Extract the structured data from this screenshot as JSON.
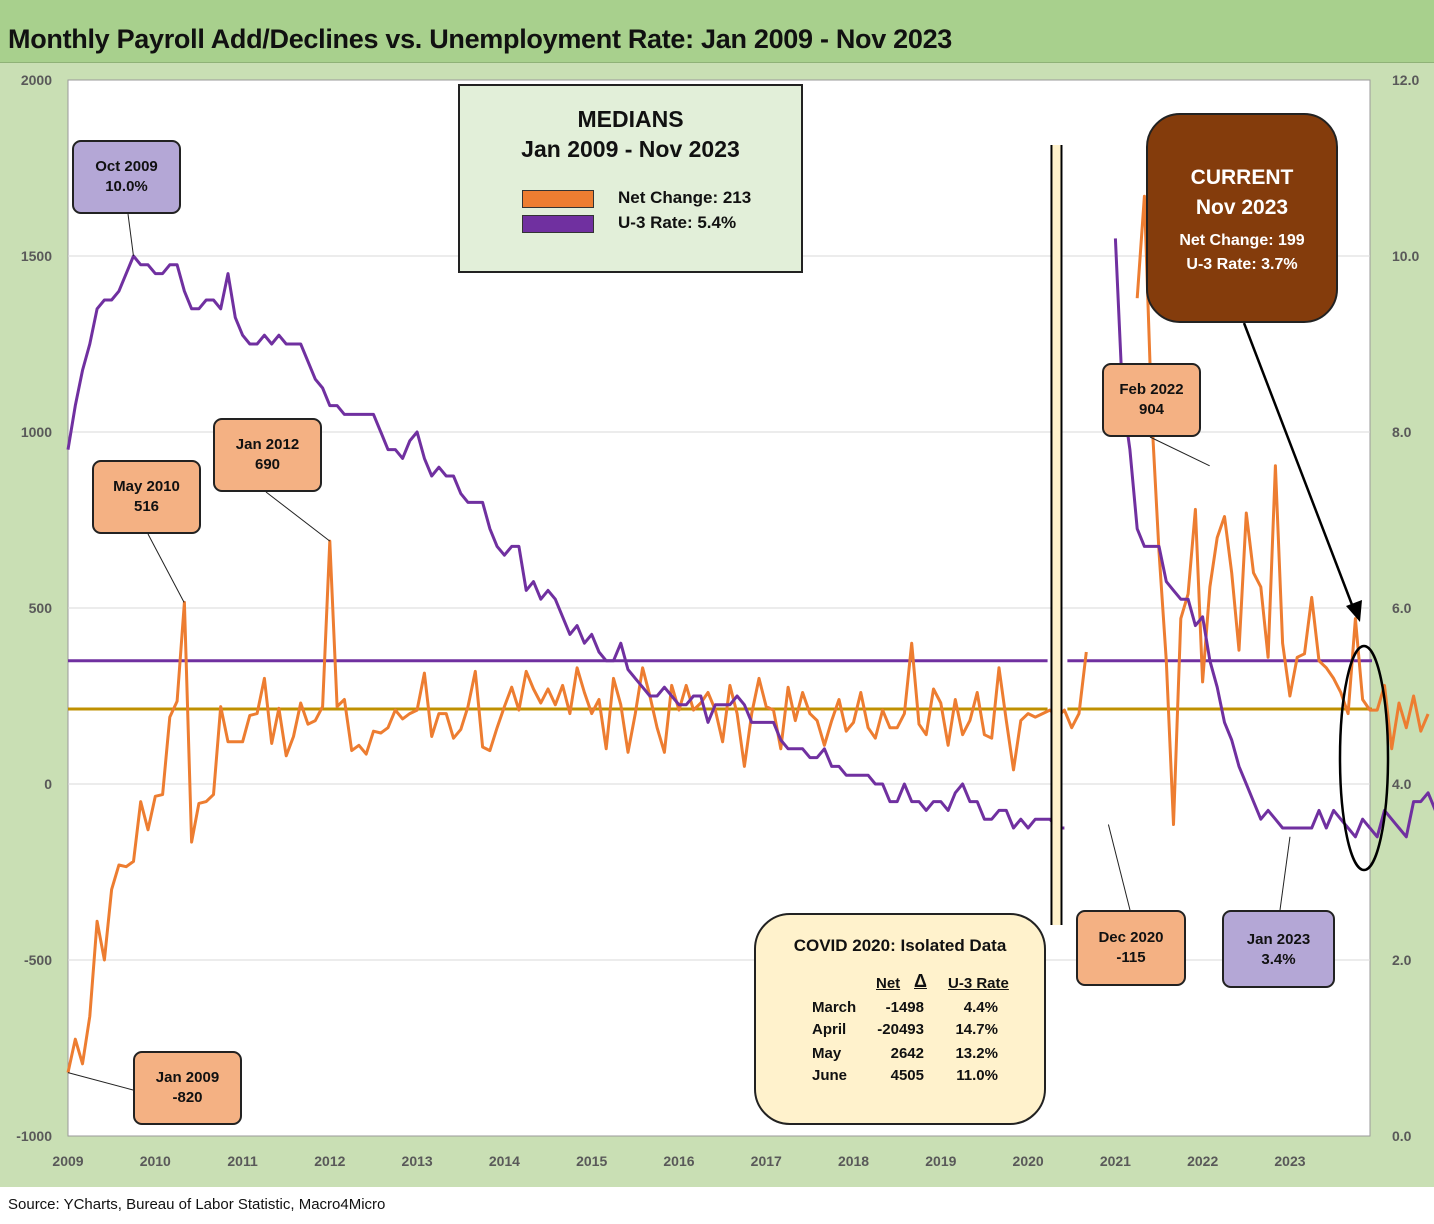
{
  "title": "Monthly Payroll Add/Declines vs. Unemployment Rate: Jan 2009 - Nov 2023",
  "source": "Source: YCharts, Bureau of Labor Statistic, Macro4Micro",
  "colors": {
    "payroll": "#ed7d31",
    "u3": "#7030a0",
    "median_payroll": "#bf9000",
    "median_u3": "#7030a0",
    "frame": "#c9dfb4",
    "title_bar": "#a8d08d"
  },
  "medians_box": {
    "heading1": "MEDIANS",
    "heading2": "Jan 2009 - Nov 2023",
    "net_change": "Net Change: 213",
    "u3_rate": "U-3 Rate: 5.4%"
  },
  "current_box": {
    "heading1": "CURRENT",
    "heading2": "Nov 2023",
    "net_change": "Net Change: 199",
    "u3_rate": "U-3 Rate: 3.7%"
  },
  "covid_box": {
    "title": "COVID 2020: Isolated Data",
    "col_net": "Net",
    "col_delta": "Δ",
    "col_rate": "U-3 Rate",
    "rows": [
      {
        "month": "March",
        "net": "-1498",
        "rate": "4.4%"
      },
      {
        "month": "April",
        "net": "-20493",
        "rate": "14.7%"
      },
      {
        "month": "May",
        "net": "2642",
        "rate": "13.2%"
      },
      {
        "month": "June",
        "net": "4505",
        "rate": "11.0%"
      }
    ]
  },
  "callouts": {
    "oct2009": {
      "label": "Oct 2009",
      "value": "10.0%"
    },
    "may2010": {
      "label": "May 2010",
      "value": "516"
    },
    "jan2012": {
      "label": "Jan 2012",
      "value": "690"
    },
    "jan2009": {
      "label": "Jan 2009",
      "value": "-820"
    },
    "feb2022": {
      "label": "Feb 2022",
      "value": "904"
    },
    "dec2020": {
      "label": "Dec 2020",
      "value": "-115"
    },
    "jan2023": {
      "label": "Jan 2023",
      "value": "3.4%"
    }
  },
  "chart_data": {
    "type": "line",
    "title": "Monthly Payroll Add/Declines vs. Unemployment Rate: Jan 2009 - Nov 2023",
    "x_range": [
      2009.0,
      2023.917
    ],
    "x_ticks": [
      "2009",
      "2010",
      "2011",
      "2012",
      "2013",
      "2014",
      "2015",
      "2016",
      "2017",
      "2018",
      "2019",
      "2020",
      "2021",
      "2022",
      "2023"
    ],
    "y_left": {
      "range": [
        -1000,
        2000
      ],
      "ticks": [
        "-1000",
        "-500",
        "0",
        "500",
        "1000",
        "1500",
        "2000"
      ]
    },
    "y_right": {
      "range": [
        0.0,
        12.0
      ],
      "ticks": [
        "0.0",
        "2.0",
        "4.0",
        "6.0",
        "8.0",
        "10.0",
        "12.0"
      ]
    },
    "grid": "horizontal",
    "covid_gap": {
      "start": 2020.2,
      "end": 2020.45
    },
    "medians": {
      "payroll": 213,
      "u3": 5.4
    },
    "series": [
      {
        "name": "Net Change",
        "axis": "left",
        "color": "#ed7d31",
        "start": 2009.0,
        "step": 0.08333,
        "values": [
          -820,
          -725,
          -795,
          -660,
          -390,
          -500,
          -300,
          -230,
          -235,
          -220,
          -50,
          -130,
          -35,
          -30,
          190,
          235,
          516,
          -165,
          -55,
          -50,
          -30,
          220,
          120,
          120,
          120,
          195,
          200,
          300,
          115,
          215,
          80,
          135,
          230,
          170,
          180,
          220,
          690,
          220,
          240,
          95,
          110,
          85,
          150,
          145,
          160,
          210,
          185,
          200,
          210,
          315,
          135,
          200,
          200,
          130,
          155,
          220,
          320,
          105,
          95,
          160,
          220,
          275,
          210,
          320,
          270,
          230,
          270,
          225,
          280,
          200,
          330,
          260,
          200,
          240,
          100,
          300,
          225,
          90,
          200,
          330,
          250,
          160,
          90,
          280,
          210,
          280,
          210,
          230,
          260,
          210,
          120,
          280,
          200,
          50,
          200,
          300,
          220,
          210,
          100,
          275,
          180,
          260,
          200,
          180,
          110,
          180,
          240,
          150,
          175,
          260,
          160,
          130,
          210,
          160,
          160,
          200,
          400,
          170,
          140,
          270,
          230,
          110,
          240,
          140,
          180,
          260,
          140,
          130,
          330,
          180,
          40,
          180,
          200,
          190,
          200,
          210,
          190,
          210,
          160,
          200,
          375,
          null,
          null,
          null,
          null,
          null,
          null,
          1380,
          1670,
          1050,
          660,
          350,
          -115,
          470,
          540,
          780,
          290,
          560,
          700,
          760,
          600,
          380,
          770,
          600,
          560,
          360,
          904,
          400,
          250,
          360,
          370,
          530,
          350,
          330,
          300,
          260,
          200,
          470,
          240,
          210,
          210,
          280,
          100,
          230,
          160,
          250,
          150,
          199
        ],
        "start_after_gap": 2020.5
      },
      {
        "name": "U-3 Rate",
        "axis": "right",
        "color": "#7030a0",
        "start": 2009.0,
        "step": 0.08333,
        "values": [
          7.8,
          8.3,
          8.7,
          9.0,
          9.4,
          9.5,
          9.5,
          9.6,
          9.8,
          10.0,
          9.9,
          9.9,
          9.8,
          9.8,
          9.9,
          9.9,
          9.6,
          9.4,
          9.4,
          9.5,
          9.5,
          9.4,
          9.8,
          9.3,
          9.1,
          9.0,
          9.0,
          9.1,
          9.0,
          9.1,
          9.0,
          9.0,
          9.0,
          8.8,
          8.6,
          8.5,
          8.3,
          8.3,
          8.2,
          8.2,
          8.2,
          8.2,
          8.2,
          8.0,
          7.8,
          7.8,
          7.7,
          7.9,
          8.0,
          7.7,
          7.5,
          7.6,
          7.5,
          7.5,
          7.3,
          7.2,
          7.2,
          7.2,
          6.9,
          6.7,
          6.6,
          6.7,
          6.7,
          6.2,
          6.3,
          6.1,
          6.2,
          6.1,
          5.9,
          5.7,
          5.8,
          5.6,
          5.7,
          5.5,
          5.4,
          5.4,
          5.6,
          5.3,
          5.2,
          5.1,
          5.0,
          5.0,
          5.1,
          5.0,
          4.9,
          4.9,
          5.0,
          5.0,
          4.7,
          4.9,
          4.9,
          4.9,
          5.0,
          4.9,
          4.7,
          4.7,
          4.7,
          4.7,
          4.5,
          4.4,
          4.4,
          4.4,
          4.3,
          4.3,
          4.4,
          4.2,
          4.2,
          4.1,
          4.1,
          4.1,
          4.1,
          4.0,
          4.0,
          3.8,
          3.8,
          4.0,
          3.8,
          3.8,
          3.7,
          3.8,
          3.8,
          3.7,
          3.9,
          4.0,
          3.8,
          3.8,
          3.6,
          3.6,
          3.7,
          3.7,
          3.5,
          3.6,
          3.5,
          3.6,
          3.6,
          3.6,
          3.5,
          3.5,
          null,
          null,
          null,
          null,
          null,
          null,
          10.2,
          8.4,
          7.8,
          6.9,
          6.7,
          6.7,
          6.7,
          6.3,
          6.2,
          6.1,
          6.1,
          5.8,
          5.9,
          5.4,
          5.1,
          4.7,
          4.5,
          4.2,
          4.0,
          3.8,
          3.6,
          3.7,
          3.6,
          3.5,
          3.5,
          3.5,
          3.5,
          3.5,
          3.7,
          3.5,
          3.7,
          3.6,
          3.5,
          3.4,
          3.6,
          3.5,
          3.4,
          3.7,
          3.6,
          3.5,
          3.4,
          3.8,
          3.8,
          3.9,
          3.7
        ]
      }
    ]
  }
}
